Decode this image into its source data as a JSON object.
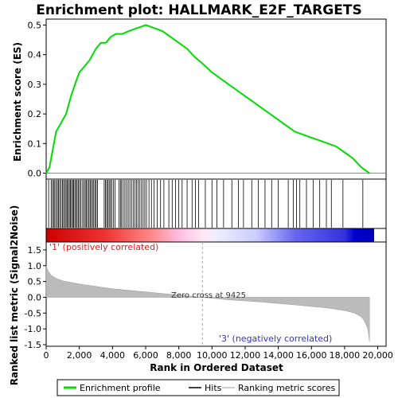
{
  "chart_data": {
    "type": "line",
    "title": "Enrichment plot: HALLMARK_E2F_TARGETS",
    "es_panel": {
      "ylabel": "Enrichment score (ES)",
      "ylim": [
        -0.02,
        0.52
      ],
      "yticks": [
        "0.0",
        "0.1",
        "0.2",
        "0.3",
        "0.4",
        "0.5"
      ],
      "series": [
        {
          "name": "Enrichment profile",
          "color": "#00dd00",
          "x": [
            0,
            200,
            400,
            600,
            800,
            1000,
            1200,
            1500,
            1800,
            2000,
            2300,
            2600,
            3000,
            3300,
            3600,
            3900,
            4200,
            4600,
            5000,
            5500,
            6000,
            6500,
            7000,
            7500,
            8000,
            8500,
            9000,
            9425,
            10000,
            10500,
            11000,
            11500,
            12000,
            12500,
            13000,
            13500,
            14000,
            14500,
            15000,
            15500,
            16000,
            16500,
            17000,
            17500,
            18000,
            18500,
            19000,
            19500
          ],
          "y": [
            0.0,
            0.02,
            0.08,
            0.14,
            0.16,
            0.18,
            0.2,
            0.26,
            0.31,
            0.34,
            0.36,
            0.38,
            0.42,
            0.44,
            0.44,
            0.46,
            0.47,
            0.47,
            0.48,
            0.49,
            0.5,
            0.49,
            0.48,
            0.46,
            0.44,
            0.42,
            0.39,
            0.37,
            0.34,
            0.32,
            0.3,
            0.28,
            0.26,
            0.24,
            0.22,
            0.2,
            0.18,
            0.16,
            0.14,
            0.13,
            0.12,
            0.11,
            0.1,
            0.09,
            0.07,
            0.05,
            0.02,
            0.0
          ]
        }
      ]
    },
    "hits_panel": {
      "hits": [
        150,
        300,
        380,
        450,
        520,
        600,
        680,
        750,
        820,
        900,
        980,
        1050,
        1120,
        1200,
        1260,
        1330,
        1400,
        1470,
        1530,
        1600,
        1660,
        1730,
        1800,
        1870,
        1950,
        2020,
        2100,
        2200,
        2280,
        2360,
        2430,
        2500,
        2580,
        2650,
        2720,
        2800,
        2870,
        2950,
        3020,
        3100,
        3500,
        3580,
        3650,
        3720,
        3800,
        3880,
        3950,
        4050,
        4150,
        4400,
        4480,
        4550,
        4650,
        4750,
        4850,
        4950,
        5050,
        5150,
        5250,
        5350,
        5450,
        5550,
        5650,
        5750,
        5850,
        5950,
        6050,
        6200,
        6350,
        6500,
        6700,
        6900,
        7100,
        7400,
        7600,
        7800,
        8000,
        8200,
        8500,
        8800,
        9000,
        9200,
        9600,
        10000,
        10300,
        10700,
        11200,
        11600,
        11900,
        12400,
        12800,
        13200,
        13600,
        14000,
        14600,
        14900,
        15100,
        15300,
        15700,
        16100,
        16500,
        16900,
        17200,
        17900,
        19100
      ]
    },
    "ranked_panel": {
      "ylabel": "Ranked list metric (Signal2Noise)",
      "ylim": [
        -1.55,
        1.75
      ],
      "yticks": [
        "1.5",
        "1.0",
        "0.5",
        "0.0",
        "-0.5",
        "-1.0",
        "-1.5"
      ],
      "x": [
        0,
        100,
        300,
        600,
        1000,
        2000,
        4000,
        6000,
        8000,
        9425,
        11000,
        13000,
        15000,
        17000,
        18000,
        18600,
        19000,
        19200,
        19400,
        19500
      ],
      "values": [
        1.0,
        0.85,
        0.7,
        0.6,
        0.52,
        0.42,
        0.27,
        0.17,
        0.07,
        0.0,
        -0.08,
        -0.15,
        -0.24,
        -0.34,
        -0.42,
        -0.5,
        -0.62,
        -0.75,
        -1.0,
        -1.4
      ],
      "zero_cross_label": "Zero cross at 9425",
      "pos_label": "'1' (positively correlated)",
      "neg_label": "'3' (negatively correlated)"
    },
    "xaxis": {
      "xlabel": "Rank in Ordered Dataset",
      "xlim": [
        0,
        20500
      ],
      "xticks": [
        0,
        2000,
        4000,
        6000,
        8000,
        10000,
        12000,
        14000,
        16000,
        18000,
        20000
      ],
      "xtick_labels": [
        "0",
        "2,000",
        "4,000",
        "6,000",
        "8,000",
        "10,000",
        "12,000",
        "14,000",
        "16,000",
        "18,000",
        "20,000"
      ],
      "n_genes": 19500
    },
    "legend": {
      "placement": "bottom",
      "items": [
        "Enrichment profile",
        "Hits",
        "Ranking metric scores"
      ]
    },
    "colors": {
      "profile": "#00dd00",
      "hits": "#000000",
      "metric_fill": "#bbbbbb",
      "pos_text": "#dd2222",
      "neg_text": "#3333cc"
    }
  }
}
